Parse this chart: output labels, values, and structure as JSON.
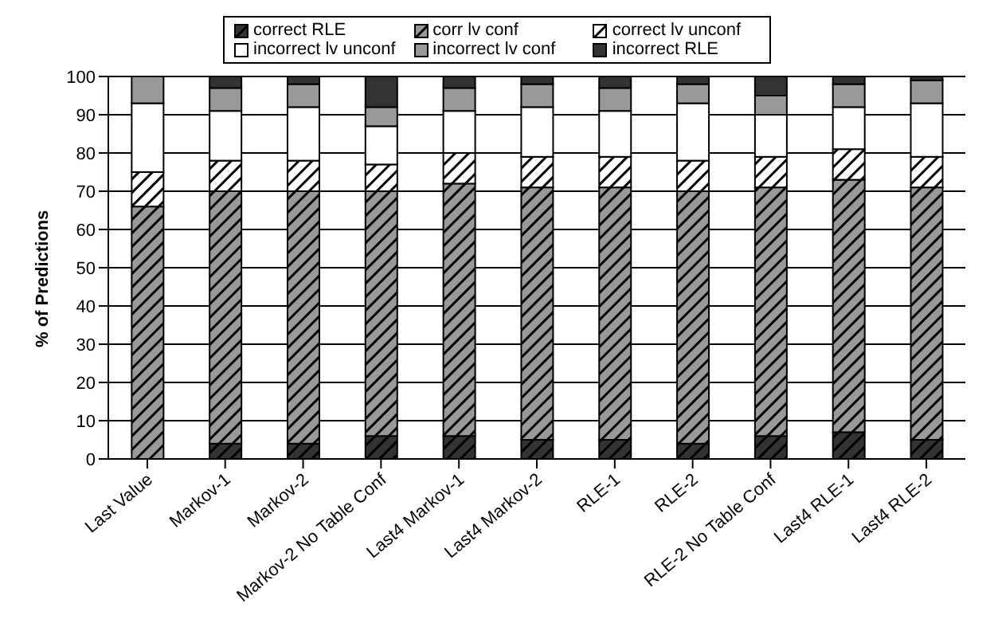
{
  "chart_data": {
    "type": "bar",
    "stacked": true,
    "ylabel": "% of Predictions",
    "categories": [
      "Last Value",
      "Markov-1",
      "Markov-2",
      "Markov-2 No Table Conf",
      "Last4 Markov-1",
      "Last4 Markov-2",
      "RLE-1",
      "RLE-2",
      "RLE-2 No Table Conf",
      "Last4 RLE-1",
      "Last4 RLE-2"
    ],
    "series": [
      {
        "name": "correct RLE",
        "color": "#333333",
        "values": [
          0,
          4,
          4,
          6,
          6,
          5,
          5,
          4,
          6,
          7,
          5
        ]
      },
      {
        "name": "corr lv conf",
        "color": "#999999",
        "values": [
          66,
          66,
          66,
          64,
          66,
          66,
          66,
          66,
          65,
          66,
          66
        ]
      },
      {
        "name": "correct lv unconf",
        "color": "#ffffff",
        "values": [
          9,
          8,
          8,
          7,
          8,
          8,
          8,
          8,
          8,
          8,
          8
        ]
      },
      {
        "name": "incorrect lv unconf",
        "color": "#ffffff",
        "values": [
          18,
          13,
          14,
          10,
          11,
          13,
          12,
          15,
          11,
          11,
          14
        ]
      },
      {
        "name": "incorrect lv conf",
        "color": "#999999",
        "values": [
          7,
          6,
          6,
          5,
          6,
          6,
          6,
          5,
          5,
          6,
          6
        ]
      },
      {
        "name": "incorrect RLE",
        "color": "#333333",
        "values": [
          0,
          3,
          2,
          8,
          3,
          2,
          3,
          2,
          5,
          2,
          1
        ]
      }
    ],
    "ylim": [
      0,
      100
    ],
    "yticks": [
      0,
      10,
      20,
      30,
      40,
      50,
      60,
      70,
      80,
      90,
      100
    ],
    "grid": "y",
    "legend": "top"
  }
}
